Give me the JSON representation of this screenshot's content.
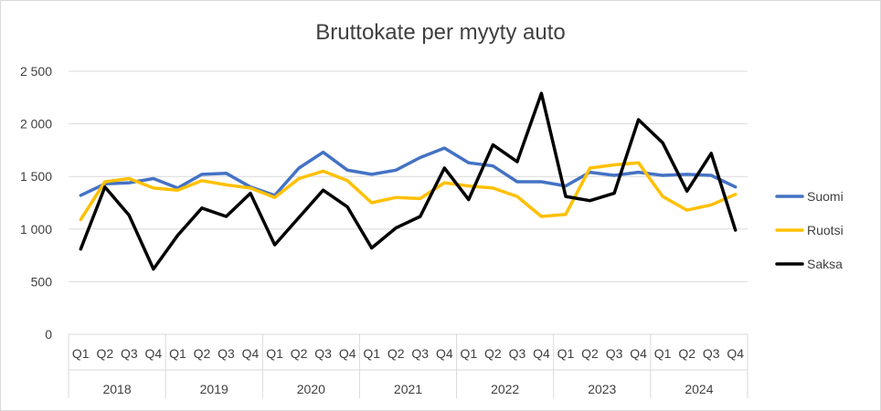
{
  "chart_data": {
    "type": "line",
    "title": "Bruttokate per myyty auto",
    "xlabel": "",
    "ylabel": "",
    "ylim": [
      0,
      2500
    ],
    "yticks": [
      "0",
      "500",
      "1 000",
      "1 500",
      "2 000",
      "2 500"
    ],
    "ytick_values": [
      0,
      500,
      1000,
      1500,
      2000,
      2500
    ],
    "quarters": [
      "Q1",
      "Q2",
      "Q3",
      "Q4"
    ],
    "years": [
      "2018",
      "2019",
      "2020",
      "2021",
      "2022",
      "2023",
      "2024"
    ],
    "categories": [
      "2018 Q1",
      "2018 Q2",
      "2018 Q3",
      "2018 Q4",
      "2019 Q1",
      "2019 Q2",
      "2019 Q3",
      "2019 Q4",
      "2020 Q1",
      "2020 Q2",
      "2020 Q3",
      "2020 Q4",
      "2021 Q1",
      "2021 Q2",
      "2021 Q3",
      "2021 Q4",
      "2022 Q1",
      "2022 Q2",
      "2022 Q3",
      "2022 Q4",
      "2023 Q1",
      "2023 Q2",
      "2023 Q3",
      "2023 Q4",
      "2024 Q1",
      "2024 Q2",
      "2024 Q3",
      "2024 Q4"
    ],
    "grid": true,
    "legend_position": "right",
    "series": [
      {
        "name": "Suomi",
        "color": "#4472C4",
        "values": [
          1320,
          1430,
          1440,
          1480,
          1390,
          1520,
          1530,
          1400,
          1320,
          1580,
          1730,
          1560,
          1520,
          1560,
          1680,
          1770,
          1630,
          1600,
          1450,
          1450,
          1410,
          1540,
          1510,
          1540,
          1510,
          1520,
          1510,
          1400
        ]
      },
      {
        "name": "Ruotsi",
        "color": "#FFC000",
        "values": [
          1090,
          1450,
          1480,
          1390,
          1370,
          1460,
          1420,
          1390,
          1300,
          1480,
          1550,
          1460,
          1250,
          1300,
          1290,
          1440,
          1410,
          1390,
          1310,
          1120,
          1140,
          1580,
          1610,
          1630,
          1310,
          1180,
          1230,
          1330
        ]
      },
      {
        "name": "Saksa",
        "color": "#000000",
        "values": [
          810,
          1400,
          1130,
          620,
          940,
          1200,
          1120,
          1340,
          850,
          1110,
          1370,
          1210,
          820,
          1010,
          1120,
          1580,
          1280,
          1800,
          1640,
          2290,
          1310,
          1270,
          1340,
          2040,
          1820,
          1360,
          1720,
          990
        ]
      }
    ]
  }
}
